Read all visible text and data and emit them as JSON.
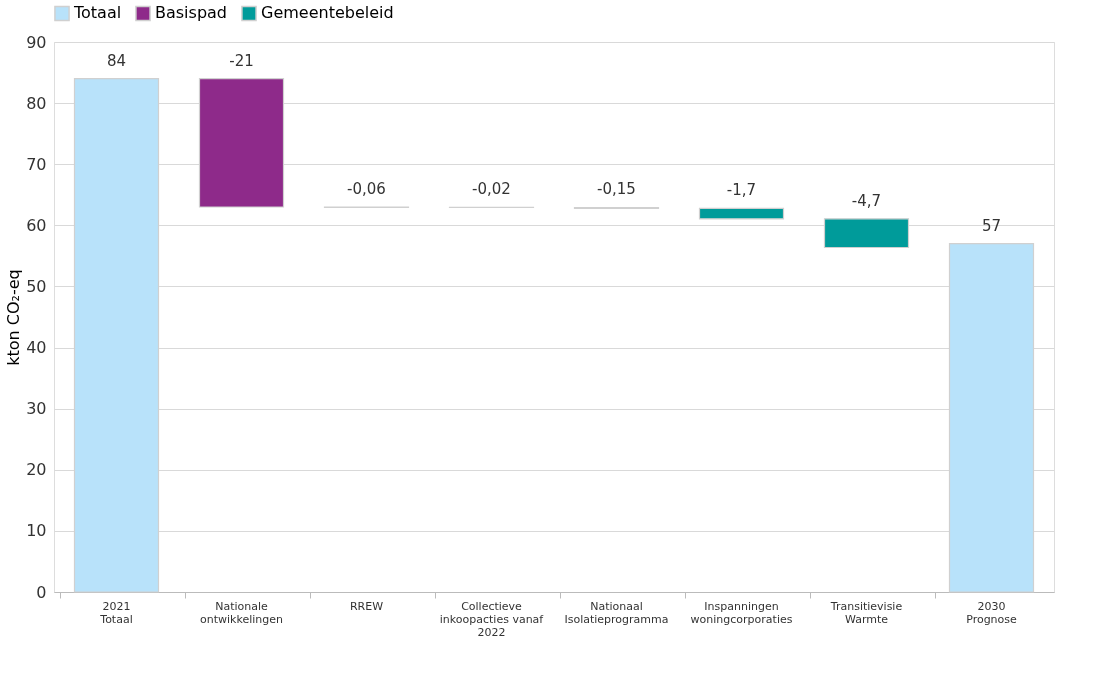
{
  "chart_data": {
    "type": "bar",
    "ylabel": "kton CO₂-eq",
    "categories": [
      "2021\nTotaal",
      "Nationale\nontwikkelingen",
      "RREW",
      "Collectieve\ninkoopacties vanaf\n2022",
      "Nationaal\nIsolatieprogramma",
      "Inspanningen\nwoningcorporaties",
      "Transitievisie\nWarmte",
      "2030\nPrognose"
    ],
    "series": [
      {
        "name": "Totaal",
        "color": "#b8e2fa",
        "base": [
          0,
          null,
          null,
          null,
          null,
          null,
          null,
          0
        ],
        "values": [
          84,
          null,
          null,
          null,
          null,
          null,
          null,
          57
        ],
        "value_labels": [
          "84",
          null,
          null,
          null,
          null,
          null,
          null,
          "57"
        ]
      },
      {
        "name": "Basispad",
        "color": "#8e2a8a",
        "base": [
          null,
          84,
          null,
          null,
          null,
          null,
          null,
          null
        ],
        "values": [
          null,
          -21,
          null,
          null,
          null,
          null,
          null,
          null
        ],
        "value_labels": [
          null,
          "-21",
          null,
          null,
          null,
          null,
          null,
          null
        ]
      },
      {
        "name": "Gemeentebeleid",
        "color": "#009b9a",
        "base": [
          null,
          null,
          63,
          62.94,
          62.92,
          62.77,
          61.07,
          null
        ],
        "values": [
          null,
          null,
          -0.06,
          -0.02,
          -0.15,
          -1.7,
          -4.7,
          null
        ],
        "value_labels": [
          null,
          null,
          "-0,06",
          "-0,02",
          "-0,15",
          "-1,7",
          "-4,7",
          null
        ]
      }
    ],
    "ylim": [
      0,
      90
    ],
    "yticks": [
      0,
      10,
      20,
      30,
      40,
      50,
      60,
      70,
      80,
      90
    ],
    "grid": "y",
    "legend": "top"
  }
}
